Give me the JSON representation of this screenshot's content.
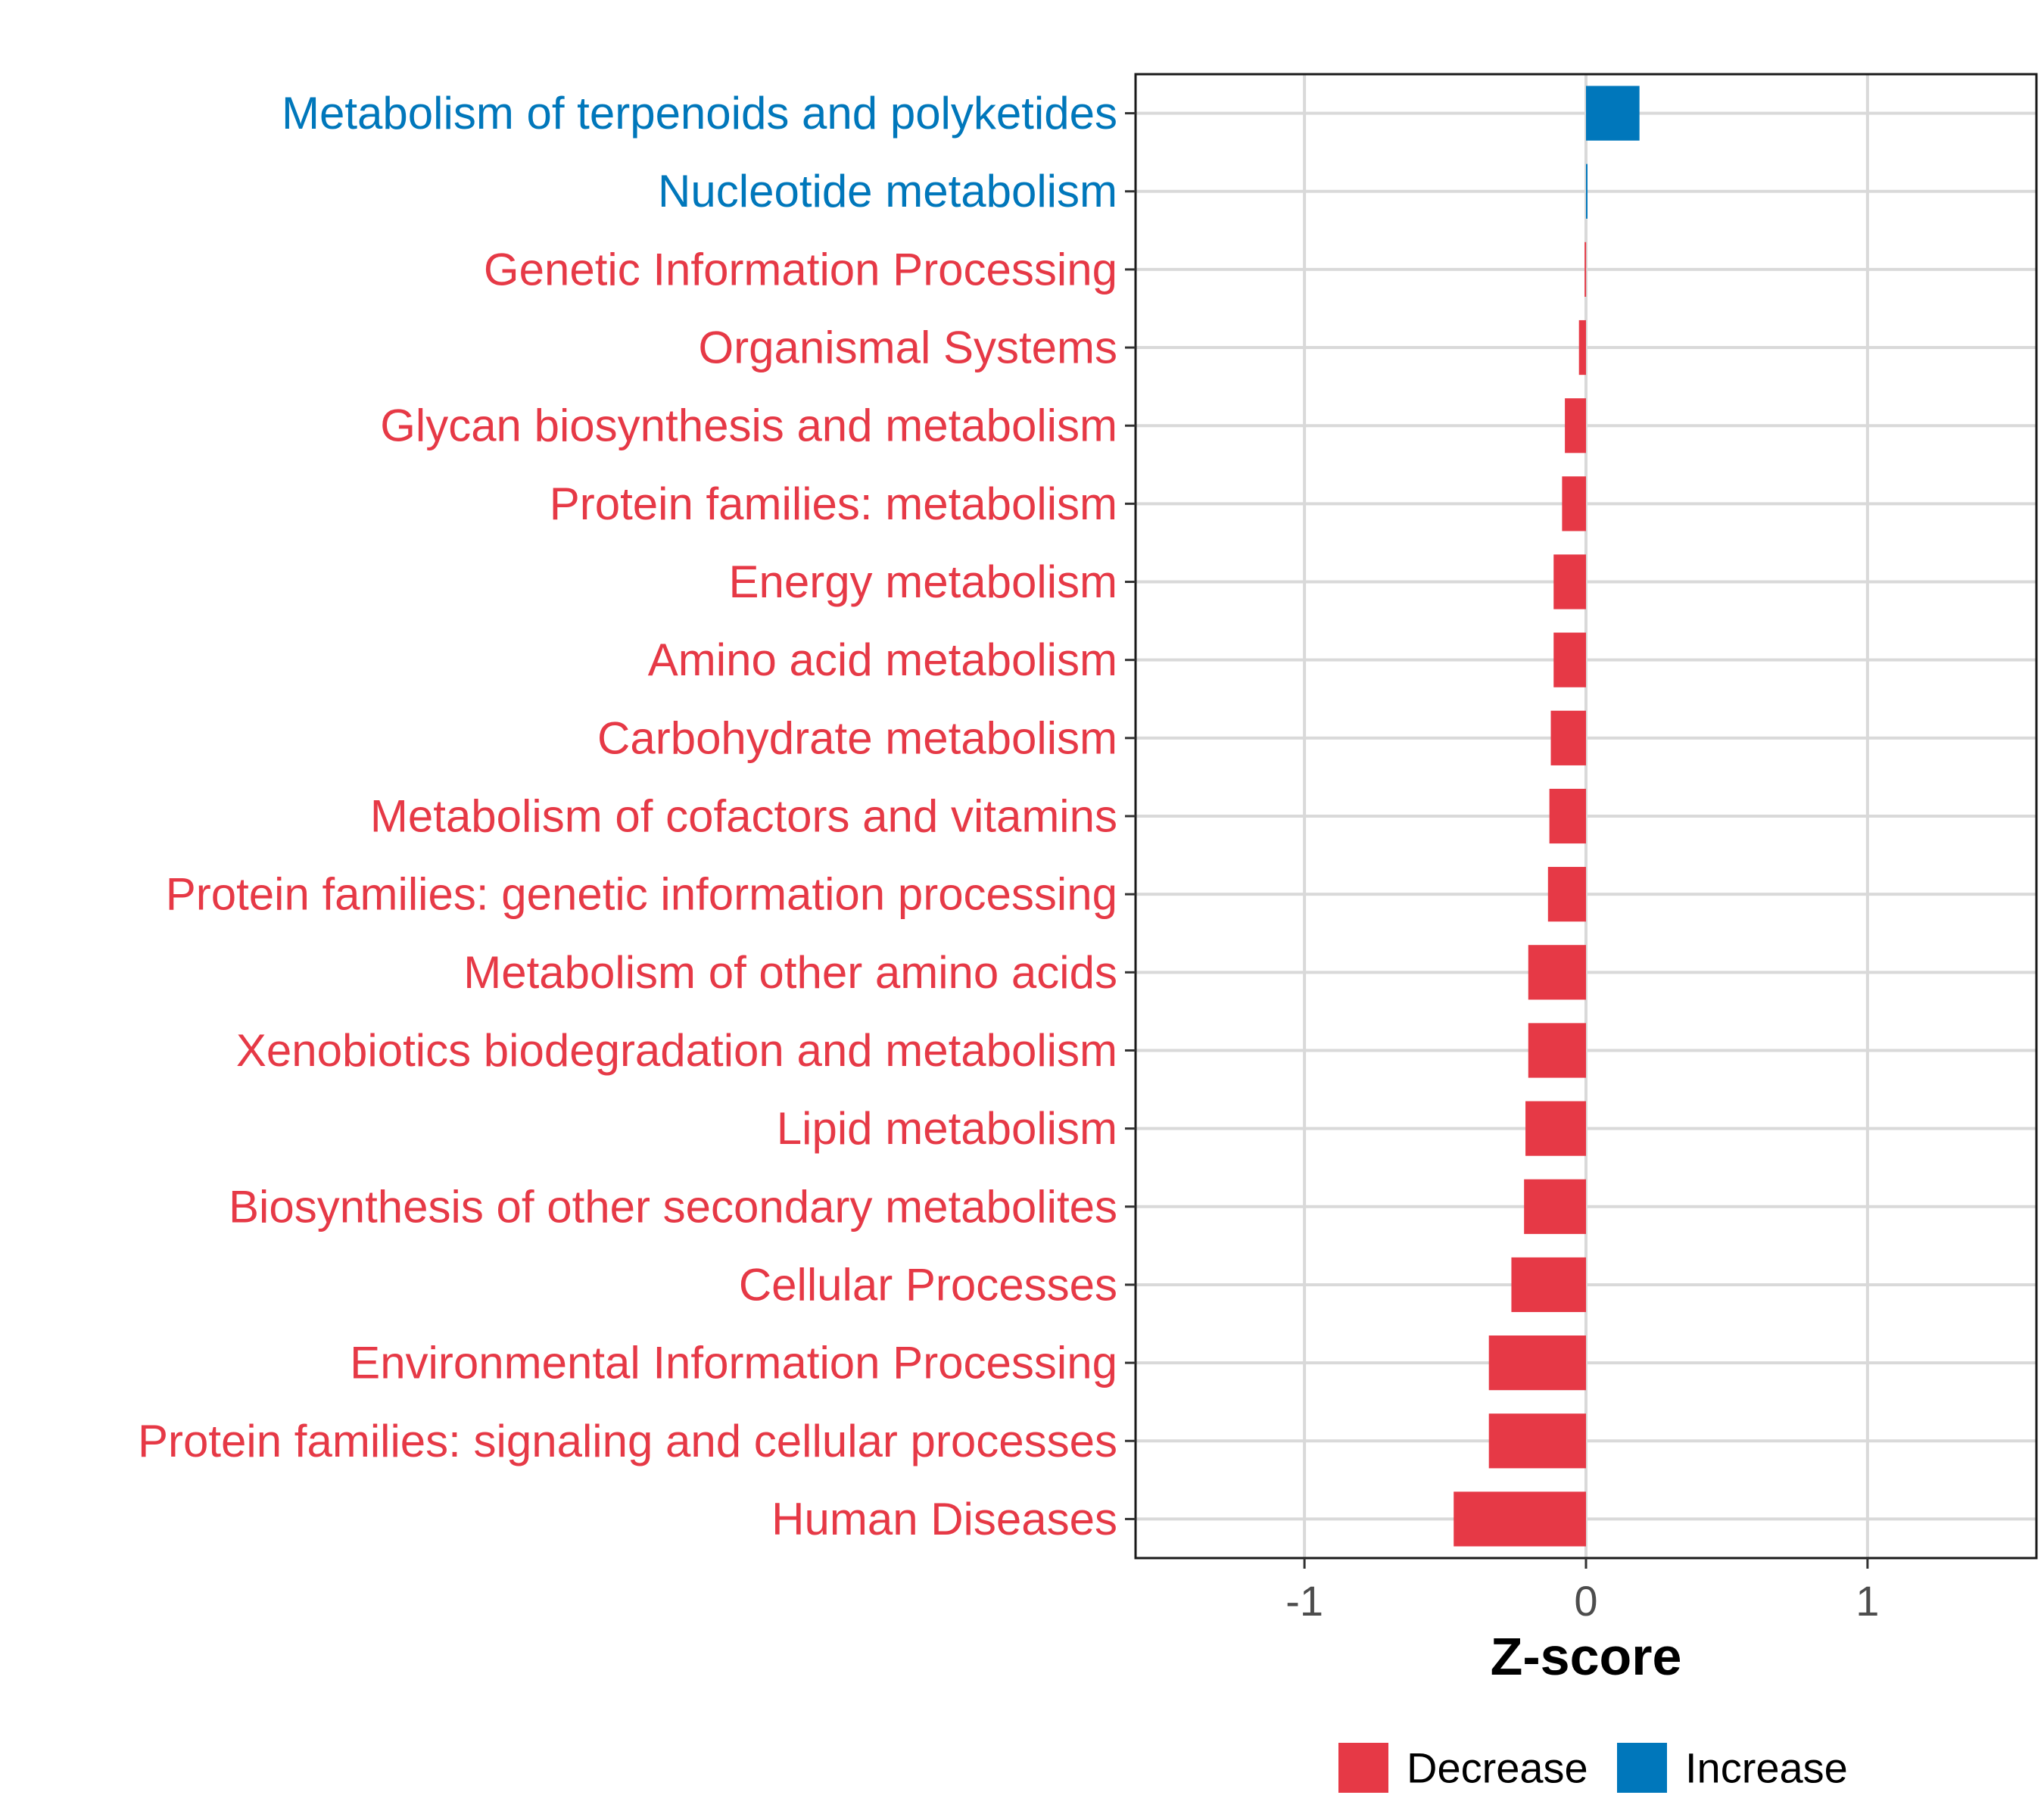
{
  "chart_data": {
    "type": "bar",
    "orientation": "horizontal",
    "title": "",
    "xlabel": "Z-score",
    "ylabel": "",
    "xlim": [
      -1.6,
      1.6
    ],
    "xticks": [
      -1,
      0,
      1
    ],
    "xtick_labels": [
      "-1",
      "0",
      "1"
    ],
    "grid": true,
    "legend_position": "bottom",
    "colors": {
      "Decrease": "#e63946",
      "Increase": "#0077bb"
    },
    "legend": [
      {
        "label": "Decrease",
        "color": "#e63946"
      },
      {
        "label": "Increase",
        "color": "#0077bb"
      }
    ],
    "categories": [
      "Metabolism of terpenoids and polyketides",
      "Nucleotide metabolism",
      "Genetic Information Processing",
      "Organismal Systems",
      "Glycan biosynthesis and metabolism",
      "Protein families: metabolism",
      "Energy metabolism",
      "Amino acid metabolism",
      "Carbohydrate metabolism",
      "Metabolism of cofactors and vitamins",
      "Protein families: genetic information processing",
      "Metabolism of other amino acids",
      "Xenobiotics biodegradation and metabolism",
      "Lipid metabolism",
      "Biosynthesis of other secondary metabolites",
      "Cellular Processes",
      "Environmental Information Processing",
      "Protein families: signaling and cellular processes",
      "Human Diseases"
    ],
    "values": [
      0.19,
      0.005,
      -0.005,
      -0.025,
      -0.075,
      -0.085,
      -0.115,
      -0.115,
      -0.125,
      -0.13,
      -0.135,
      -0.205,
      -0.205,
      -0.215,
      -0.22,
      -0.265,
      -0.345,
      -0.345,
      -0.47
    ],
    "groups": [
      "Increase",
      "Increase",
      "Decrease",
      "Decrease",
      "Decrease",
      "Decrease",
      "Decrease",
      "Decrease",
      "Decrease",
      "Decrease",
      "Decrease",
      "Decrease",
      "Decrease",
      "Decrease",
      "Decrease",
      "Decrease",
      "Decrease",
      "Decrease",
      "Decrease"
    ]
  }
}
